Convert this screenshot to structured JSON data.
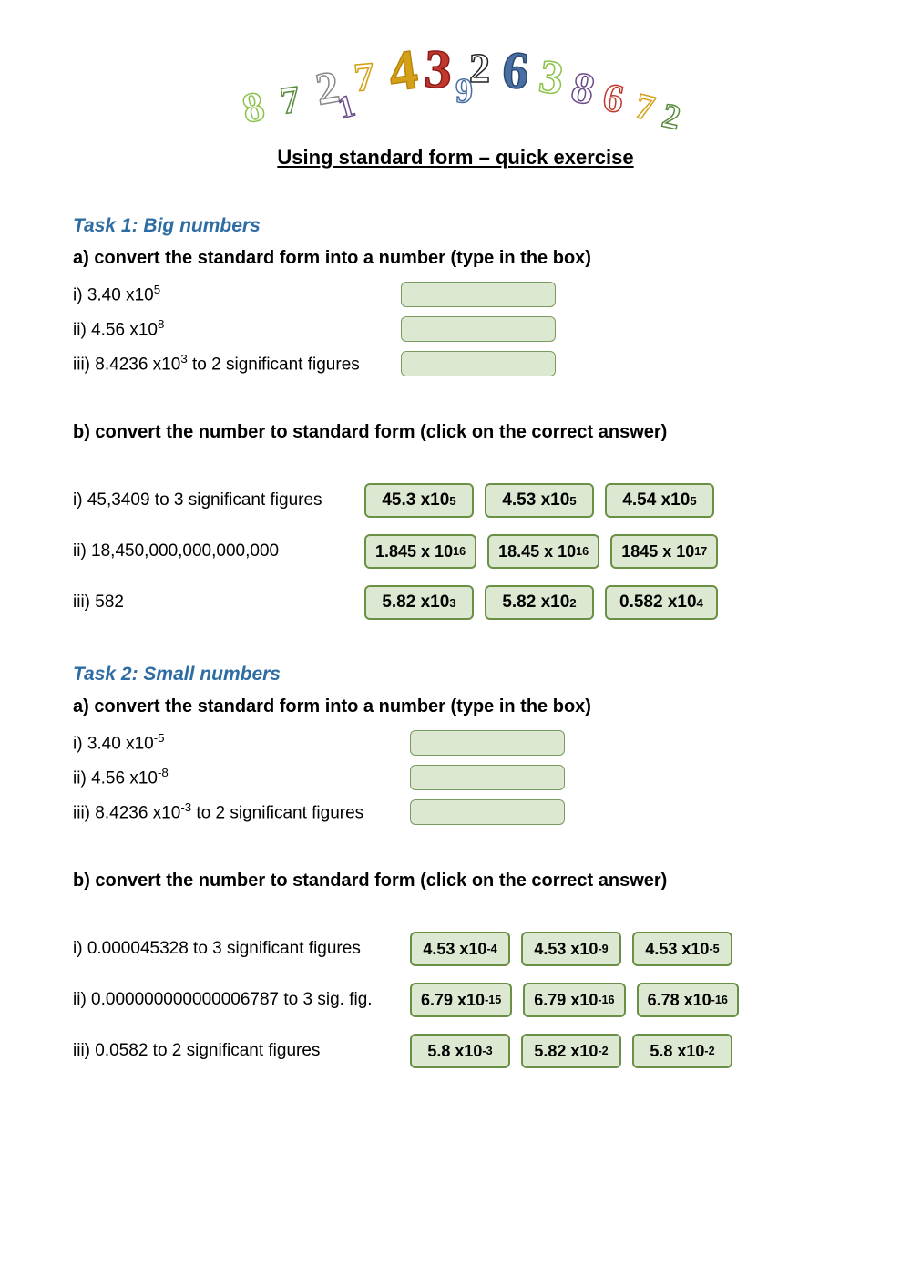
{
  "colors": {
    "accent": "#2e6ca4",
    "box_bg": "#dce8d1",
    "box_border": "#6a9046",
    "text": "#000000"
  },
  "title": "Using standard form – quick exercise",
  "task1": {
    "heading": "Task 1: Big numbers",
    "partA": {
      "heading": "a) convert the standard form into a number (type in the box)",
      "items": [
        {
          "prefix": "i) ",
          "base": "3.40 x10",
          "exp": "5",
          "suffix": ""
        },
        {
          "prefix": " ii) ",
          "base": "4.56 x10",
          "exp": "8",
          "suffix": ""
        },
        {
          "prefix": "iii) ",
          "base": "8.4236 x10",
          "exp": "3",
          "suffix": " to 2 significant figures"
        }
      ]
    },
    "partB": {
      "heading": "b) convert the number to standard form (click on the correct answer)",
      "items": [
        {
          "label": "i) 45,3409 to 3 significant figures",
          "choices": [
            {
              "base": "45.3 x10",
              "exp": "5"
            },
            {
              "base": "4.53 x10",
              "exp": "5"
            },
            {
              "base": "4.54 x10",
              "exp": "5"
            }
          ]
        },
        {
          "label": "ii) 18,450,000,000,000,000",
          "choices": [
            {
              "base": "1.845 x 10",
              "exp": "16"
            },
            {
              "base": "18.45 x 10",
              "exp": "16"
            },
            {
              "base": "1845 x 10",
              "exp": "17"
            }
          ]
        },
        {
          "label": "iii) 582",
          "choices": [
            {
              "base": "5.82 x10",
              "exp": "3"
            },
            {
              "base": "5.82 x10",
              "exp": "2"
            },
            {
              "base": "0.582 x10",
              "exp": "4"
            }
          ]
        }
      ]
    }
  },
  "task2": {
    "heading": "Task 2: Small numbers",
    "partA": {
      "heading": "a) convert the standard form into a number (type in the box)",
      "items": [
        {
          "prefix": "i) ",
          "base": "3.40 x10",
          "exp": "-5",
          "suffix": ""
        },
        {
          "prefix": "ii) ",
          "base": "4.56 x10",
          "exp": "-8",
          "suffix": ""
        },
        {
          "prefix": "iii) ",
          "base": "8.4236 x10",
          "exp": "-3",
          "suffix": " to 2 significant figures"
        }
      ]
    },
    "partB": {
      "heading": "b) convert the number to standard form (click on the correct answer)",
      "items": [
        {
          "label": "i) 0.000045328 to 3 significant figures",
          "choices": [
            {
              "base": "4.53 x10",
              "exp": "-4"
            },
            {
              "base": "4.53 x10",
              "exp": "-9"
            },
            {
              "base": "4.53 x10",
              "exp": "-5"
            }
          ]
        },
        {
          "label": "ii) 0.000000000000006787 to 3 sig. fig.",
          "choices": [
            {
              "base": "6.79 x10",
              "exp": "-15"
            },
            {
              "base": "6.79 x10",
              "exp": "-16"
            },
            {
              "base": "6.78 x10",
              "exp": "-16"
            }
          ]
        },
        {
          "label": "iii) 0.0582 to 2 significant figures",
          "choices": [
            {
              "base": "5.8 x10",
              "exp": "-3"
            },
            {
              "base": "5.82 x10",
              "exp": "-2"
            },
            {
              "base": "5.8 x10",
              "exp": "-2"
            }
          ]
        }
      ]
    }
  }
}
